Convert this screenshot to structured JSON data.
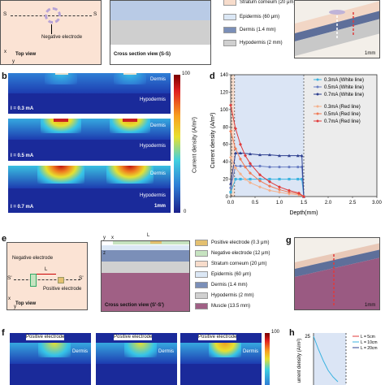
{
  "top": {
    "a_top_view": "Top view",
    "a_neg": "Negative electrode",
    "a_axis_x": "x",
    "a_axis_y": "y",
    "a_s1": "S",
    "a_s2": "S",
    "cross_title": "Cross section view (S-S)",
    "legend": [
      {
        "label": "Stratum corneum (20 μm)",
        "color": "#f7dccb"
      },
      {
        "label": "Epidermis (60 μm)",
        "color": "#dbe7f5"
      },
      {
        "label": "Dermis (1.4 mm)",
        "color": "#7b8fb8"
      },
      {
        "label": "Hypodermis (2 mm)",
        "color": "#d0d0d0"
      }
    ],
    "scale_c": "1mm"
  },
  "b": {
    "letter": "b",
    "rows": [
      {
        "i": "I = 0.3 mA",
        "dermis": "Dermis",
        "hypo": "Hypodermis"
      },
      {
        "i": "I = 0.5 mA",
        "dermis": "Dermis",
        "hypo": "Hypodermis"
      },
      {
        "i": "I = 0.7 mA",
        "dermis": "Dermis",
        "hypo": "Hypodermis"
      }
    ],
    "scale": "1mm",
    "cb_top": "100",
    "cb_bottom": "0",
    "cb_label": "Current density (A/m²)"
  },
  "d": {
    "letter": "d"
  },
  "chart_data": {
    "type": "line",
    "xlabel": "Depth(mm)",
    "ylabel": "Current density (A/m²)",
    "xlim": [
      0,
      3.0
    ],
    "ylim": [
      0,
      140
    ],
    "xticks": [
      "0.0",
      "0.5",
      "1.0",
      "1.5",
      "2.0",
      "2.5",
      "3.00"
    ],
    "yticks": [
      "0",
      "20",
      "40",
      "60",
      "80",
      "100",
      "120",
      "140"
    ],
    "legend_position": "top-right",
    "series": [
      {
        "name": "0.3mA (White line)",
        "color": "#3bb3e0",
        "marker": "square",
        "x": [
          0.0,
          0.1,
          0.2,
          0.4,
          0.6,
          0.8,
          1.0,
          1.2,
          1.38,
          1.46,
          1.5
        ],
        "y": [
          5,
          20,
          20,
          20,
          20,
          20,
          20,
          20,
          20,
          20,
          0
        ]
      },
      {
        "name": "0.5mA (White line)",
        "color": "#6a7fc4",
        "marker": "circle",
        "x": [
          0.0,
          0.1,
          0.2,
          0.4,
          0.6,
          0.8,
          1.0,
          1.2,
          1.38,
          1.46,
          1.5
        ],
        "y": [
          10,
          35,
          35,
          35,
          35,
          34,
          34,
          34,
          34,
          34,
          0
        ]
      },
      {
        "name": "0.7mA (White line)",
        "color": "#2e3f8f",
        "marker": "triangle",
        "x": [
          0.0,
          0.1,
          0.2,
          0.4,
          0.6,
          0.8,
          1.0,
          1.2,
          1.38,
          1.46,
          1.5
        ],
        "y": [
          15,
          50,
          50,
          49,
          48,
          48,
          47,
          47,
          47,
          47,
          0
        ]
      },
      {
        "name": "0.3mA (Red line)",
        "color": "#f5b08a",
        "marker": "diamond",
        "x": [
          0.0,
          0.1,
          0.2,
          0.3,
          0.4,
          0.6,
          0.8,
          1.0,
          1.2,
          1.4,
          1.5
        ],
        "y": [
          45,
          33,
          26,
          20,
          16,
          11,
          7,
          5,
          3,
          2,
          0
        ]
      },
      {
        "name": "0.5mA (Red line)",
        "color": "#f07a55",
        "marker": "diamond",
        "x": [
          0.0,
          0.1,
          0.2,
          0.3,
          0.4,
          0.6,
          0.8,
          1.0,
          1.2,
          1.4,
          1.5
        ],
        "y": [
          75,
          55,
          43,
          34,
          27,
          18,
          12,
          8,
          5,
          3,
          0
        ]
      },
      {
        "name": "0.7mA (Red line)",
        "color": "#e03a3a",
        "marker": "diamond",
        "x": [
          0.0,
          0.1,
          0.2,
          0.3,
          0.4,
          0.6,
          0.8,
          1.0,
          1.2,
          1.4,
          1.5
        ],
        "y": [
          105,
          78,
          60,
          47,
          38,
          25,
          17,
          11,
          7,
          4,
          0
        ]
      }
    ]
  },
  "e": {
    "letter": "e",
    "neg": "Negative electrode",
    "pos": "Positive electrode",
    "L": "L",
    "s1": "S'",
    "s2": "S'",
    "top_view": "Top view",
    "cross_title": "Cross section view (S'-S')",
    "axis_x": "x",
    "axis_y": "y",
    "axis_z": "z",
    "legend": [
      {
        "label": "Positive electrode (0.3 μm)",
        "color": "#e4c070"
      },
      {
        "label": "Negative electrode (12 μm)",
        "color": "#c6e3c0"
      },
      {
        "label": "Stratum corneum (20 μm)",
        "color": "#f7dccb"
      },
      {
        "label": "Epidermis (60 μm)",
        "color": "#dbe7f5"
      },
      {
        "label": "Dermis (1.4 mm)",
        "color": "#7b8fb8"
      },
      {
        "label": "Hypodermis (2 mm)",
        "color": "#d0d0d0"
      },
      {
        "label": "Muscle (13.5 mm)",
        "color": "#a06085"
      }
    ]
  },
  "g": {
    "letter": "g",
    "scale": "1mm"
  },
  "f": {
    "letter": "f",
    "panels": [
      {
        "title": "Positive electrode",
        "dermis": "Dermis"
      },
      {
        "title": "Positive electrode",
        "dermis": "Dermis"
      },
      {
        "title": "Positive electrode",
        "dermis": "Dermis"
      }
    ],
    "cb_top": "100"
  },
  "h": {
    "letter": "h",
    "ylabel": "urrent density (A/m²)",
    "ytick": "25",
    "legend": [
      {
        "label": "L = 5cm",
        "color": "#e03a3a"
      },
      {
        "label": "L = 10cm",
        "color": "#3bb3e0"
      },
      {
        "label": "L = 20cm",
        "color": "#2e3f8f"
      }
    ]
  }
}
